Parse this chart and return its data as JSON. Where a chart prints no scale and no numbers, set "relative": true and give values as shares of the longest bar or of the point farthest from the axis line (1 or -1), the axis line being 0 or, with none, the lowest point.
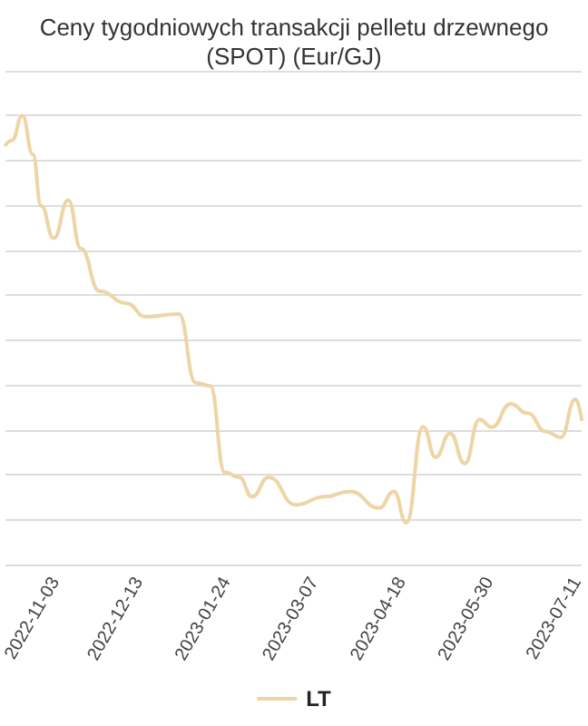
{
  "chart_data": {
    "type": "line",
    "title": "Ceny tygodniowych transakcji pelletu drzewnego\n(SPOT) (Eur/GJ)",
    "relative": true,
    "x": [
      "2022-10-10",
      "2022-10-13",
      "2022-10-18",
      "2022-10-23",
      "2022-10-27",
      "2022-11-02",
      "2022-11-09",
      "2022-11-15",
      "2022-11-24",
      "2022-12-07",
      "2022-12-16",
      "2023-01-01",
      "2023-01-09",
      "2023-01-16",
      "2023-01-23",
      "2023-01-30",
      "2023-02-05",
      "2023-02-13",
      "2023-02-26",
      "2023-03-12",
      "2023-03-24",
      "2023-04-07",
      "2023-04-14",
      "2023-04-20",
      "2023-04-28",
      "2023-05-04",
      "2023-05-11",
      "2023-05-18",
      "2023-05-25",
      "2023-05-31",
      "2023-06-09",
      "2023-06-17",
      "2023-06-26",
      "2023-07-03",
      "2023-07-10",
      "2023-07-13"
    ],
    "series": [
      {
        "name": "LT",
        "color": "#edd5a6",
        "values": [
          0.935,
          0.945,
          1.0,
          0.914,
          0.799,
          0.727,
          0.812,
          0.704,
          0.609,
          0.582,
          0.552,
          0.558,
          0.405,
          0.398,
          0.205,
          0.194,
          0.151,
          0.194,
          0.133,
          0.151,
          0.163,
          0.126,
          0.163,
          0.093,
          0.307,
          0.239,
          0.292,
          0.225,
          0.323,
          0.306,
          0.358,
          0.337,
          0.296,
          0.283,
          0.368,
          0.323
        ]
      }
    ],
    "xlim": [
      "2022-10-10",
      "2023-07-13"
    ],
    "xticks": [
      "2022-11-03",
      "2022-12-13",
      "2023-01-24",
      "2023-03-07",
      "2023-04-18",
      "2023-05-30",
      "2023-07-11"
    ],
    "grid": "y",
    "legend": "bottom",
    "marker": "none",
    "line_style": "solid"
  }
}
